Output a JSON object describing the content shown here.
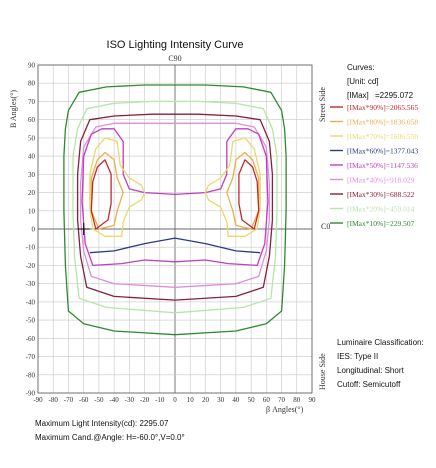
{
  "chart_data": {
    "type": "contour",
    "title": "ISO Lighting Intensity Curve",
    "top_label": "C90",
    "right_mid_label": "C0",
    "street_label": "Street Side",
    "house_label": "House Side",
    "ylabel": "B Angles(°)",
    "xlabel": "β Angles(°)",
    "xlim": [
      -90,
      90
    ],
    "ylim": [
      -90,
      90
    ],
    "xticks": [
      -90,
      -80,
      -70,
      -60,
      -50,
      -40,
      -30,
      -20,
      -10,
      0,
      10,
      20,
      30,
      40,
      50,
      60,
      70,
      80,
      90
    ],
    "yticks": [
      90,
      80,
      70,
      60,
      50,
      40,
      30,
      20,
      10,
      0,
      -10,
      -20,
      -30,
      -40,
      -50,
      -60,
      -70,
      -80,
      -90
    ],
    "grid": true,
    "max_marker": {
      "x": -60,
      "y": 0
    },
    "legend": {
      "title": "Curves:",
      "unit": "[Unit: cd]",
      "imax_label": "[IMax]",
      "imax_value": "=2295.072",
      "entries": [
        {
          "label": "[IMax*90%]=2065.565",
          "color": "#c0292e"
        },
        {
          "label": "[IMax*80%]=1836.058",
          "color": "#e9b04a"
        },
        {
          "label": "[IMax*70%]=1606.550",
          "color": "#ecd86a"
        },
        {
          "label": "[IMax*60%]=1377.043",
          "color": "#2b3a86"
        },
        {
          "label": "[IMax*50%]=1147.536",
          "color": "#c03ec0"
        },
        {
          "label": "[IMax*40%]=918.029",
          "color": "#de8ede"
        },
        {
          "label": "[IMax*30%]=688.522",
          "color": "#8a1e3e"
        },
        {
          "label": "[IMax*20%]=459.014",
          "color": "#b6e6a6"
        },
        {
          "label": "[IMax*10%]=229.507",
          "color": "#2f8a2f"
        }
      ]
    },
    "classification": {
      "heading": "Luminaire Classification:",
      "ies": "IES: Type II",
      "longitudinal": "Longitudinal: Short",
      "cutoff": "Cutoff:  Semicutoff"
    },
    "footer": {
      "max_intensity": "Maximum Light Intensity(cd): 2295.07",
      "max_angle": "Maximum Cand.@Angle: H=-60.0°,V=0.0°"
    },
    "contours": [
      {
        "level": "10%",
        "points": [
          [
            -63,
            75
          ],
          [
            -45,
            78
          ],
          [
            -20,
            79
          ],
          [
            0,
            79
          ],
          [
            20,
            79
          ],
          [
            45,
            78
          ],
          [
            63,
            75
          ],
          [
            70,
            65
          ],
          [
            72,
            55
          ],
          [
            73,
            40
          ],
          [
            73,
            10
          ],
          [
            72,
            -20
          ],
          [
            70,
            -45
          ],
          [
            60,
            -52
          ],
          [
            40,
            -56
          ],
          [
            0,
            -58
          ],
          [
            -40,
            -56
          ],
          [
            -60,
            -52
          ],
          [
            -70,
            -45
          ],
          [
            -72,
            -20
          ],
          [
            -73,
            10
          ],
          [
            -73,
            40
          ],
          [
            -72,
            55
          ],
          [
            -70,
            65
          ]
        ]
      },
      {
        "level": "20%",
        "points": [
          [
            -58,
            66
          ],
          [
            -40,
            69
          ],
          [
            -15,
            70
          ],
          [
            0,
            70
          ],
          [
            15,
            70
          ],
          [
            40,
            69
          ],
          [
            58,
            66
          ],
          [
            64,
            55
          ],
          [
            67,
            40
          ],
          [
            67,
            10
          ],
          [
            66,
            -15
          ],
          [
            63,
            -38
          ],
          [
            45,
            -43
          ],
          [
            0,
            -46
          ],
          [
            -45,
            -43
          ],
          [
            -63,
            -38
          ],
          [
            -66,
            -15
          ],
          [
            -67,
            10
          ],
          [
            -67,
            40
          ],
          [
            -64,
            55
          ]
        ]
      },
      {
        "level": "30%",
        "points": [
          [
            -56,
            60
          ],
          [
            -40,
            62
          ],
          [
            -15,
            63
          ],
          [
            0,
            63
          ],
          [
            15,
            63
          ],
          [
            40,
            62
          ],
          [
            56,
            60
          ],
          [
            62,
            48
          ],
          [
            64,
            30
          ],
          [
            64,
            5
          ],
          [
            62,
            -15
          ],
          [
            58,
            -32
          ],
          [
            40,
            -37
          ],
          [
            0,
            -39
          ],
          [
            -40,
            -37
          ],
          [
            -58,
            -32
          ],
          [
            -62,
            -15
          ],
          [
            -64,
            5
          ],
          [
            -64,
            30
          ],
          [
            -62,
            48
          ]
        ]
      },
      {
        "level": "40%",
        "points": [
          [
            -52,
            56
          ],
          [
            -40,
            58
          ],
          [
            -15,
            58
          ],
          [
            0,
            58
          ],
          [
            15,
            58
          ],
          [
            40,
            58
          ],
          [
            52,
            56
          ],
          [
            60,
            45
          ],
          [
            62,
            25
          ],
          [
            62,
            5
          ],
          [
            60,
            -12
          ],
          [
            55,
            -26
          ],
          [
            40,
            -30
          ],
          [
            0,
            -32
          ],
          [
            -40,
            -30
          ],
          [
            -55,
            -26
          ],
          [
            -60,
            -12
          ],
          [
            -62,
            5
          ],
          [
            -62,
            25
          ],
          [
            -60,
            45
          ]
        ]
      },
      {
        "level": "50%",
        "points": [
          [
            -55,
            52
          ],
          [
            -48,
            55
          ],
          [
            -40,
            55
          ],
          [
            -34,
            48
          ],
          [
            -34,
            30
          ],
          [
            -30,
            22
          ],
          [
            -20,
            20
          ],
          [
            0,
            19
          ],
          [
            20,
            20
          ],
          [
            30,
            22
          ],
          [
            34,
            30
          ],
          [
            34,
            48
          ],
          [
            40,
            55
          ],
          [
            48,
            55
          ],
          [
            55,
            52
          ],
          [
            60,
            40
          ],
          [
            61,
            15
          ],
          [
            59,
            -8
          ],
          [
            54,
            -20
          ],
          [
            35,
            -19
          ],
          [
            20,
            -17
          ],
          [
            0,
            -18
          ],
          [
            -20,
            -17
          ],
          [
            -35,
            -19
          ],
          [
            -54,
            -20
          ],
          [
            -59,
            -8
          ],
          [
            -61,
            15
          ],
          [
            -60,
            40
          ]
        ]
      },
      {
        "level": "60%",
        "points": [
          [
            -56,
            -13
          ],
          [
            -40,
            -12
          ],
          [
            -20,
            -8
          ],
          [
            0,
            -5
          ],
          [
            20,
            -8
          ],
          [
            40,
            -12
          ],
          [
            56,
            -13
          ]
        ]
      },
      {
        "level": "70%",
        "points": [
          [
            -46,
            50
          ],
          [
            -38,
            48
          ],
          [
            -36,
            35
          ],
          [
            -30,
            28
          ],
          [
            -22,
            24
          ],
          [
            -20,
            20
          ],
          [
            -22,
            16
          ],
          [
            -30,
            12
          ],
          [
            -34,
            4
          ],
          [
            -35,
            -4
          ],
          [
            -46,
            -4
          ],
          [
            -54,
            0
          ],
          [
            -56,
            12
          ],
          [
            -56,
            30
          ],
          [
            -52,
            44
          ]
        ]
      },
      {
        "level": "70%",
        "points": [
          [
            46,
            50
          ],
          [
            38,
            48
          ],
          [
            36,
            35
          ],
          [
            30,
            28
          ],
          [
            22,
            24
          ],
          [
            20,
            20
          ],
          [
            22,
            16
          ],
          [
            30,
            12
          ],
          [
            34,
            4
          ],
          [
            35,
            -4
          ],
          [
            46,
            -4
          ],
          [
            54,
            0
          ],
          [
            56,
            12
          ],
          [
            56,
            30
          ],
          [
            52,
            44
          ]
        ]
      },
      {
        "level": "80%",
        "points": [
          [
            -46,
            42
          ],
          [
            -40,
            38
          ],
          [
            -38,
            28
          ],
          [
            -34,
            20
          ],
          [
            -38,
            10
          ],
          [
            -40,
            2
          ],
          [
            -50,
            0
          ],
          [
            -55,
            10
          ],
          [
            -55,
            28
          ],
          [
            -51,
            38
          ]
        ]
      },
      {
        "level": "80%",
        "points": [
          [
            46,
            42
          ],
          [
            40,
            38
          ],
          [
            38,
            28
          ],
          [
            34,
            20
          ],
          [
            38,
            10
          ],
          [
            40,
            2
          ],
          [
            50,
            0
          ],
          [
            55,
            10
          ],
          [
            55,
            28
          ],
          [
            51,
            38
          ]
        ]
      },
      {
        "level": "90%",
        "points": [
          [
            -46,
            38
          ],
          [
            -42,
            30
          ],
          [
            -42,
            14
          ],
          [
            -44,
            5
          ],
          [
            -52,
            0
          ],
          [
            -55,
            10
          ],
          [
            -54,
            26
          ],
          [
            -51,
            34
          ]
        ]
      },
      {
        "level": "90%",
        "points": [
          [
            46,
            38
          ],
          [
            42,
            30
          ],
          [
            42,
            14
          ],
          [
            44,
            5
          ],
          [
            52,
            0
          ],
          [
            55,
            10
          ],
          [
            54,
            26
          ],
          [
            51,
            34
          ]
        ]
      }
    ]
  }
}
